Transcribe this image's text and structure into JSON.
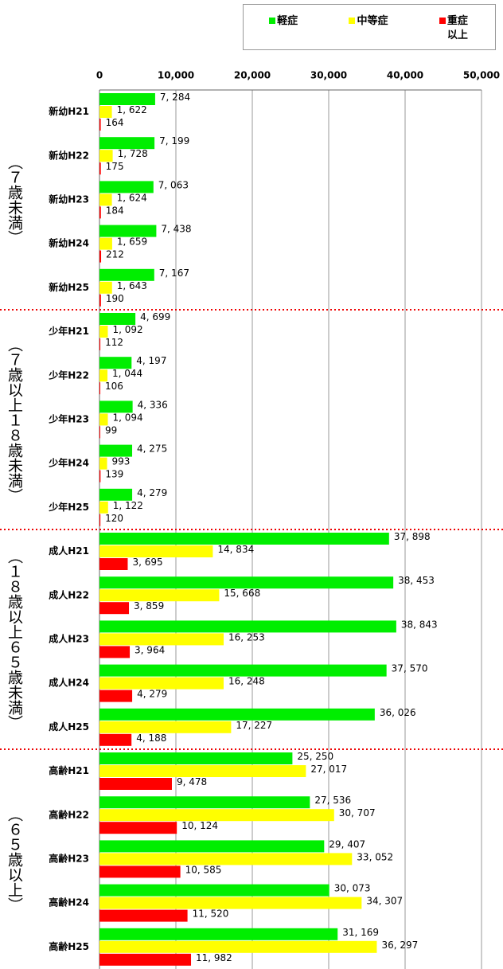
{
  "chart_data": {
    "type": "bar",
    "orientation": "horizontal",
    "categories": [
      "新幼H21",
      "新幼H22",
      "新幼H23",
      "新幼H24",
      "新幼H25",
      "少年H21",
      "少年H22",
      "少年H23",
      "少年H24",
      "少年H25",
      "成人H21",
      "成人H22",
      "成人H23",
      "成人H24",
      "成人H25",
      "高齢H21",
      "高齢H22",
      "高齢H23",
      "高齢H24",
      "高齢H25"
    ],
    "group_labels": [
      "（７歳未満）",
      "（７歳以上１８歳未満）",
      "（１８歳以上６５歳未満）",
      "（６５歳以上）"
    ],
    "series": [
      {
        "name": "軽症",
        "color": "#00ee00",
        "values": [
          7284,
          7199,
          7063,
          7438,
          7167,
          4699,
          4197,
          4336,
          4275,
          4279,
          37898,
          38453,
          38843,
          37570,
          36026,
          25250,
          27536,
          29407,
          30073,
          31169
        ],
        "value_labels": [
          "7, 284",
          "7, 199",
          "7, 063",
          "7, 438",
          "7, 167",
          "4, 699",
          "4, 197",
          "4, 336",
          "4, 275",
          "4, 279",
          "37, 898",
          "38, 453",
          "38, 843",
          "37, 570",
          "36, 026",
          "25, 250",
          "27, 536",
          "29, 407",
          "30, 073",
          "31, 169"
        ]
      },
      {
        "name": "中等症",
        "color": "#ffff00",
        "values": [
          1622,
          1728,
          1624,
          1659,
          1643,
          1092,
          1044,
          1094,
          993,
          1122,
          14834,
          15668,
          16253,
          16248,
          17227,
          27017,
          30707,
          33052,
          34307,
          36297
        ],
        "value_labels": [
          "1, 622",
          "1, 728",
          "1, 624",
          "1, 659",
          "1, 643",
          "1, 092",
          "1, 044",
          "1, 094",
          "993",
          "1, 122",
          "14, 834",
          "15, 668",
          "16, 253",
          "16, 248",
          "17, 227",
          "27, 017",
          "30, 707",
          "33, 052",
          "34, 307",
          "36, 297"
        ]
      },
      {
        "name": "重症以上",
        "color": "#ff0000",
        "values": [
          164,
          175,
          184,
          212,
          190,
          112,
          106,
          99,
          139,
          120,
          3695,
          3859,
          3964,
          4279,
          4188,
          9478,
          10124,
          10585,
          11520,
          11982
        ],
        "value_labels": [
          "164",
          "175",
          "184",
          "212",
          "190",
          "112",
          "106",
          "99",
          "139",
          "120",
          "3, 695",
          "3, 859",
          "3, 964",
          "4, 279",
          "4, 188",
          "9, 478",
          "10, 124",
          "10, 585",
          "11, 520",
          "11, 982"
        ]
      }
    ],
    "xlim": [
      0,
      50000
    ],
    "xticks": [
      0,
      {
        "value": 10000,
        "label": "10,000"
      },
      {
        "value": 20000,
        "label": "20,000"
      },
      {
        "value": 30000,
        "label": "30,000"
      },
      {
        "value": 40000,
        "label": "40,000"
      },
      {
        "value": 50000,
        "label": "50,000"
      }
    ],
    "grid": true
  }
}
